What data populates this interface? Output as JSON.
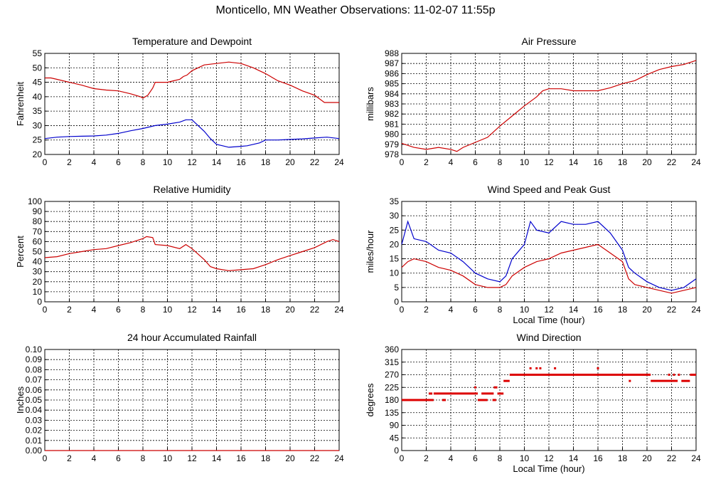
{
  "page_title": "Monticello, MN Weather Observations: 11-02-07 11:55p",
  "chart_data": [
    {
      "id": "temp",
      "type": "line",
      "title": "Temperature and Dewpoint",
      "xlabel": "",
      "ylabel": "Fahrenheit",
      "xlim": [
        0,
        24
      ],
      "ylim": [
        20,
        55
      ],
      "xticks": [
        0,
        2,
        4,
        6,
        8,
        10,
        12,
        14,
        16,
        18,
        20,
        22,
        24
      ],
      "yticks": [
        20,
        25,
        30,
        35,
        40,
        45,
        50,
        55
      ],
      "grid": true,
      "series": [
        {
          "color": "#cc0000",
          "points": [
            [
              0,
              46.5
            ],
            [
              0.5,
              46.5
            ],
            [
              1,
              46
            ],
            [
              2,
              45
            ],
            [
              3,
              44
            ],
            [
              4,
              42.8
            ],
            [
              5,
              42.3
            ],
            [
              6,
              42
            ],
            [
              7,
              41
            ],
            [
              7.8,
              40
            ],
            [
              8,
              39.5
            ],
            [
              8.4,
              40.5
            ],
            [
              8.8,
              43
            ],
            [
              9,
              45
            ],
            [
              10,
              45
            ],
            [
              10.5,
              45.5
            ],
            [
              11,
              46
            ],
            [
              11.3,
              47
            ],
            [
              11.6,
              47.5
            ],
            [
              12,
              49
            ],
            [
              13,
              51
            ],
            [
              14,
              51.5
            ],
            [
              15,
              52
            ],
            [
              16,
              51.5
            ],
            [
              17,
              50
            ],
            [
              18,
              48
            ],
            [
              19,
              45.5
            ],
            [
              20,
              44
            ],
            [
              21,
              42
            ],
            [
              22,
              40.5
            ],
            [
              22.8,
              38
            ],
            [
              23.5,
              38
            ],
            [
              24,
              38
            ]
          ]
        },
        {
          "color": "#0000cc",
          "points": [
            [
              0,
              25.5
            ],
            [
              1,
              26
            ],
            [
              2,
              26.2
            ],
            [
              3,
              26.3
            ],
            [
              4,
              26.4
            ],
            [
              5,
              26.7
            ],
            [
              6,
              27.3
            ],
            [
              7,
              28.2
            ],
            [
              8,
              29
            ],
            [
              9,
              30
            ],
            [
              10,
              30.5
            ],
            [
              11,
              31.2
            ],
            [
              11.5,
              32
            ],
            [
              12,
              32
            ],
            [
              12.5,
              30
            ],
            [
              13,
              28
            ],
            [
              13.5,
              25.5
            ],
            [
              14,
              23.5
            ],
            [
              14.5,
              23
            ],
            [
              15,
              22.5
            ],
            [
              16,
              22.8
            ],
            [
              16.5,
              23
            ],
            [
              17,
              23.5
            ],
            [
              17.5,
              24
            ],
            [
              18,
              25
            ],
            [
              19,
              25
            ],
            [
              20,
              25.2
            ],
            [
              21,
              25.4
            ],
            [
              22,
              25.7
            ],
            [
              23,
              26
            ],
            [
              24,
              25.5
            ]
          ]
        }
      ]
    },
    {
      "id": "pressure",
      "type": "line",
      "title": "Air Pressure",
      "xlabel": "",
      "ylabel": "millibars",
      "xlim": [
        0,
        24
      ],
      "ylim": [
        978,
        988
      ],
      "xticks": [
        0,
        2,
        4,
        6,
        8,
        10,
        12,
        14,
        16,
        18,
        20,
        22,
        24
      ],
      "yticks": [
        978,
        979,
        980,
        981,
        982,
        983,
        984,
        985,
        986,
        987,
        988
      ],
      "grid": true,
      "series": [
        {
          "color": "#cc0000",
          "points": [
            [
              0,
              979.1
            ],
            [
              1,
              978.7
            ],
            [
              2,
              978.5
            ],
            [
              3,
              978.7
            ],
            [
              4,
              978.5
            ],
            [
              4.5,
              978.3
            ],
            [
              5,
              978.7
            ],
            [
              6,
              979.2
            ],
            [
              7,
              979.7
            ],
            [
              8,
              980.8
            ],
            [
              9,
              981.8
            ],
            [
              10,
              982.8
            ],
            [
              11,
              983.7
            ],
            [
              11.5,
              984.3
            ],
            [
              12,
              984.5
            ],
            [
              13,
              984.5
            ],
            [
              14,
              984.3
            ],
            [
              15,
              984.3
            ],
            [
              16,
              984.3
            ],
            [
              17,
              984.6
            ],
            [
              18,
              985
            ],
            [
              19,
              985.3
            ],
            [
              20,
              985.9
            ],
            [
              21,
              986.4
            ],
            [
              22,
              986.7
            ],
            [
              23,
              986.9
            ],
            [
              24,
              987.3
            ]
          ]
        }
      ]
    },
    {
      "id": "humidity",
      "type": "line",
      "title": "Relative Humidity",
      "xlabel": "",
      "ylabel": "Percent",
      "xlim": [
        0,
        24
      ],
      "ylim": [
        0,
        100
      ],
      "xticks": [
        0,
        2,
        4,
        6,
        8,
        10,
        12,
        14,
        16,
        18,
        20,
        22,
        24
      ],
      "yticks": [
        0,
        10,
        20,
        30,
        40,
        50,
        60,
        70,
        80,
        90,
        100
      ],
      "grid": true,
      "series": [
        {
          "color": "#cc0000",
          "points": [
            [
              0,
              44
            ],
            [
              1,
              45
            ],
            [
              2,
              48
            ],
            [
              3,
              50
            ],
            [
              4,
              52
            ],
            [
              5,
              53
            ],
            [
              6,
              56
            ],
            [
              7,
              59
            ],
            [
              8,
              63
            ],
            [
              8.3,
              65
            ],
            [
              8.8,
              64
            ],
            [
              9,
              57
            ],
            [
              10,
              56
            ],
            [
              11,
              53
            ],
            [
              11.5,
              57
            ],
            [
              12,
              53
            ],
            [
              13,
              42
            ],
            [
              13.5,
              35
            ],
            [
              14,
              33
            ],
            [
              15,
              31
            ],
            [
              16,
              32
            ],
            [
              17,
              33
            ],
            [
              18,
              37
            ],
            [
              19,
              42
            ],
            [
              20,
              46
            ],
            [
              21,
              50
            ],
            [
              22,
              54
            ],
            [
              23,
              60
            ],
            [
              23.5,
              62
            ],
            [
              24,
              60
            ]
          ]
        }
      ]
    },
    {
      "id": "wind",
      "type": "line",
      "title": "Wind Speed and Peak Gust",
      "xlabel": "Local Time (hour)",
      "ylabel": "miles/hour",
      "xlim": [
        0,
        24
      ],
      "ylim": [
        0,
        35
      ],
      "xticks": [
        0,
        2,
        4,
        6,
        8,
        10,
        12,
        14,
        16,
        18,
        20,
        22,
        24
      ],
      "yticks": [
        0,
        5,
        10,
        15,
        20,
        25,
        30,
        35
      ],
      "grid": true,
      "series": [
        {
          "color": "#0000cc",
          "points": [
            [
              0,
              20
            ],
            [
              0.5,
              28
            ],
            [
              1,
              22
            ],
            [
              2,
              21
            ],
            [
              3,
              18
            ],
            [
              4,
              17
            ],
            [
              5,
              14
            ],
            [
              6,
              10
            ],
            [
              7,
              8
            ],
            [
              8,
              7
            ],
            [
              8.5,
              9
            ],
            [
              9,
              15
            ],
            [
              10,
              20
            ],
            [
              10.5,
              28
            ],
            [
              11,
              25
            ],
            [
              12,
              24
            ],
            [
              13,
              28
            ],
            [
              14,
              27
            ],
            [
              15,
              27
            ],
            [
              16,
              28
            ],
            [
              17,
              24
            ],
            [
              18,
              18
            ],
            [
              18.5,
              12
            ],
            [
              19,
              10
            ],
            [
              20,
              7
            ],
            [
              21,
              5
            ],
            [
              22,
              4
            ],
            [
              23,
              5
            ],
            [
              24,
              8
            ]
          ]
        },
        {
          "color": "#cc0000",
          "points": [
            [
              0,
              12
            ],
            [
              0.5,
              14
            ],
            [
              1,
              15
            ],
            [
              2,
              14
            ],
            [
              3,
              12
            ],
            [
              4,
              11
            ],
            [
              5,
              9
            ],
            [
              6,
              6
            ],
            [
              7,
              5
            ],
            [
              8,
              5
            ],
            [
              8.5,
              6
            ],
            [
              9,
              9
            ],
            [
              10,
              12
            ],
            [
              11,
              14
            ],
            [
              12,
              15
            ],
            [
              13,
              17
            ],
            [
              14,
              18
            ],
            [
              15,
              19
            ],
            [
              16,
              20
            ],
            [
              17,
              17
            ],
            [
              18,
              14
            ],
            [
              18.5,
              8
            ],
            [
              19,
              6
            ],
            [
              20,
              5
            ],
            [
              21,
              4
            ],
            [
              22,
              3
            ],
            [
              23,
              4
            ],
            [
              24,
              5
            ]
          ]
        }
      ]
    },
    {
      "id": "rain",
      "type": "line",
      "title": "24 hour Accumulated Rainfall",
      "xlabel": "",
      "ylabel": "Inches",
      "xlim": [
        0,
        24
      ],
      "ylim": [
        0,
        0.1
      ],
      "xticks": [
        0,
        2,
        4,
        6,
        8,
        10,
        12,
        14,
        16,
        18,
        20,
        22,
        24
      ],
      "yticks": [
        "0.00",
        "0.01",
        "0.02",
        "0.03",
        "0.04",
        "0.05",
        "0.06",
        "0.07",
        "0.08",
        "0.09",
        "0.10"
      ],
      "grid": true,
      "series": [
        {
          "color": "#cc0000",
          "points": [
            [
              0,
              0
            ],
            [
              24,
              0
            ]
          ]
        }
      ]
    },
    {
      "id": "winddir",
      "type": "scatter",
      "title": "Wind Direction",
      "xlabel": "Local Time (hour)",
      "ylabel": "degrees",
      "xlim": [
        0,
        24
      ],
      "ylim": [
        0,
        360
      ],
      "xticks": [
        0,
        2,
        4,
        6,
        8,
        10,
        12,
        14,
        16,
        18,
        20,
        22,
        24
      ],
      "yticks": [
        0,
        45,
        90,
        135,
        180,
        225,
        270,
        315,
        360
      ],
      "grid": true,
      "segments": [
        {
          "x0": 0,
          "x1": 2.6,
          "y": 180
        },
        {
          "x0": 2.2,
          "x1": 2.5,
          "y": 203
        },
        {
          "x0": 2.6,
          "x1": 6.2,
          "y": 203
        },
        {
          "x0": 3.3,
          "x1": 3.6,
          "y": 180
        },
        {
          "x0": 6.2,
          "x1": 7,
          "y": 180
        },
        {
          "x0": 6.5,
          "x1": 7.5,
          "y": 203
        },
        {
          "x0": 7.4,
          "x1": 7.7,
          "y": 180
        },
        {
          "x0": 7.5,
          "x1": 7.8,
          "y": 225
        },
        {
          "x0": 7.8,
          "x1": 8.3,
          "y": 203
        },
        {
          "x0": 8.3,
          "x1": 8.8,
          "y": 248
        },
        {
          "x0": 8.8,
          "x1": 20.3,
          "y": 270
        },
        {
          "x0": 20.3,
          "x1": 22.5,
          "y": 248
        },
        {
          "x0": 22.8,
          "x1": 23.5,
          "y": 248
        },
        {
          "x0": 23.5,
          "x1": 24,
          "y": 270
        }
      ],
      "points": [
        {
          "x": 6,
          "y": 225
        },
        {
          "x": 10.5,
          "y": 293
        },
        {
          "x": 11,
          "y": 293
        },
        {
          "x": 11.3,
          "y": 293
        },
        {
          "x": 12.5,
          "y": 293
        },
        {
          "x": 16,
          "y": 293
        },
        {
          "x": 18.6,
          "y": 248
        },
        {
          "x": 21.8,
          "y": 270
        },
        {
          "x": 22.2,
          "y": 270
        },
        {
          "x": 22.6,
          "y": 270
        }
      ]
    }
  ]
}
